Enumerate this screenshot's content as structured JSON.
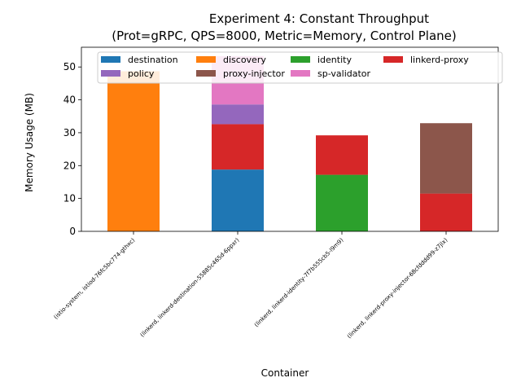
{
  "chart_data": {
    "type": "bar",
    "stacked": true,
    "title": "Experiment 4: Constant Throughput",
    "subtitle": "(Prot=gRPC, QPS=8000, Metric=Memory, Control Plane)",
    "xlabel": "Container",
    "ylabel": "Memory Usage (MB)",
    "ylim": [
      0,
      56
    ],
    "yticks": [
      0,
      10,
      20,
      30,
      40,
      50
    ],
    "grid": false,
    "legend_placement": "top",
    "categories": [
      "(istio-system, istiod-76fc5bc774-gthxc)",
      "(linkerd, linkerd-destination-55885c465d-6ppxr)",
      "(linkerd, linkerd-identity-7f7b555cb5-l9m9)",
      "(linkerd, linkerd-proxy-injector-68cfdddd99-z7jlx)"
    ],
    "series": [
      {
        "name": "destination",
        "color": "#1f77b4",
        "values": [
          0,
          18.8,
          0,
          0
        ]
      },
      {
        "name": "discovery",
        "color": "#ff7f0e",
        "values": [
          48.7,
          0,
          0,
          0
        ]
      },
      {
        "name": "identity",
        "color": "#2ca02c",
        "values": [
          0,
          0,
          17.2,
          0
        ]
      },
      {
        "name": "linkerd-proxy",
        "color": "#d62728",
        "values": [
          0,
          13.8,
          12.0,
          11.5
        ]
      },
      {
        "name": "policy",
        "color": "#9467bd",
        "values": [
          0,
          6.0,
          0,
          0
        ]
      },
      {
        "name": "proxy-injector",
        "color": "#8c564b",
        "values": [
          0,
          0,
          0,
          21.4
        ]
      },
      {
        "name": "sp-validator",
        "color": "#e377c2",
        "values": [
          0,
          14.7,
          0,
          0
        ]
      }
    ]
  }
}
